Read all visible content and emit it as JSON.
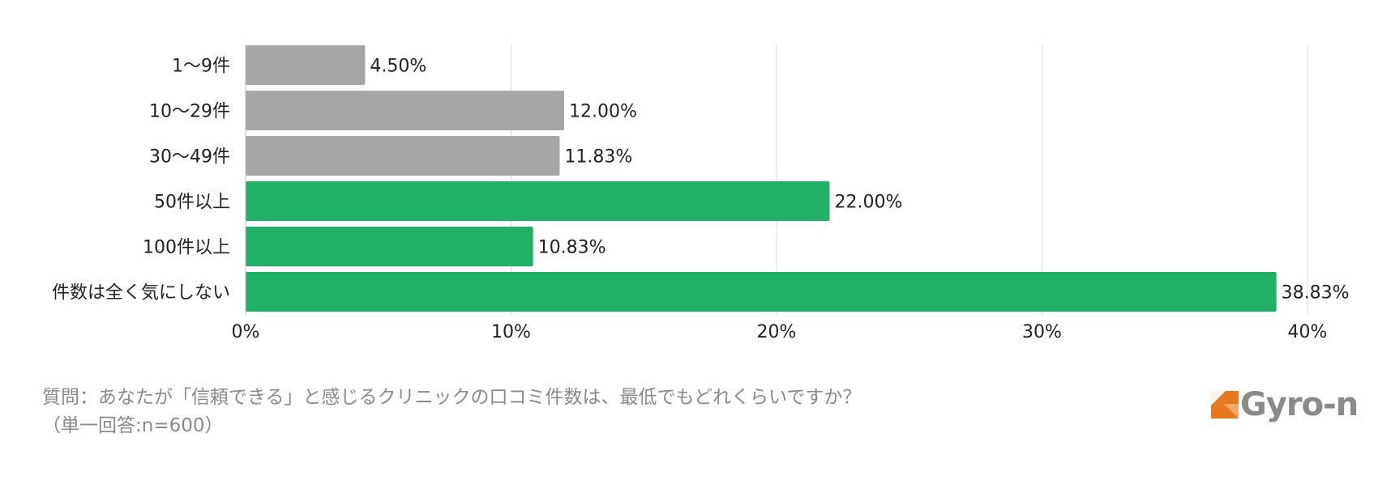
{
  "chart_data": {
    "type": "bar",
    "orientation": "horizontal",
    "categories": [
      "1〜9件",
      "10〜29件",
      "30〜49件",
      "50件以上",
      "100件以上",
      "件数は全く気にしない"
    ],
    "values": [
      4.5,
      12.0,
      11.83,
      22.0,
      10.83,
      38.83
    ],
    "value_labels": [
      "4.50%",
      "12.00%",
      "11.83%",
      "22.00%",
      "10.83%",
      "38.83%"
    ],
    "bar_colors": [
      "#a6a6a6",
      "#a6a6a6",
      "#a6a6a6",
      "#20b068",
      "#20b068",
      "#20b068"
    ],
    "xlim": [
      0,
      40
    ],
    "xticks": [
      0,
      10,
      20,
      30,
      40
    ],
    "xtick_labels": [
      "0%",
      "10%",
      "20%",
      "30%",
      "40%"
    ],
    "grid": "vertical",
    "grid_color": "#d9d9d9"
  },
  "caption": {
    "line1": "質問：あなたが「信頼できる」と感じるクリニックの口コミ件数は、最低でもどれくらいですか？",
    "line2": "（単一回答:n=600）"
  },
  "logo": {
    "text": "Gyro-n",
    "mark_color": "#e8781e",
    "text_color": "#8a8a8a"
  }
}
